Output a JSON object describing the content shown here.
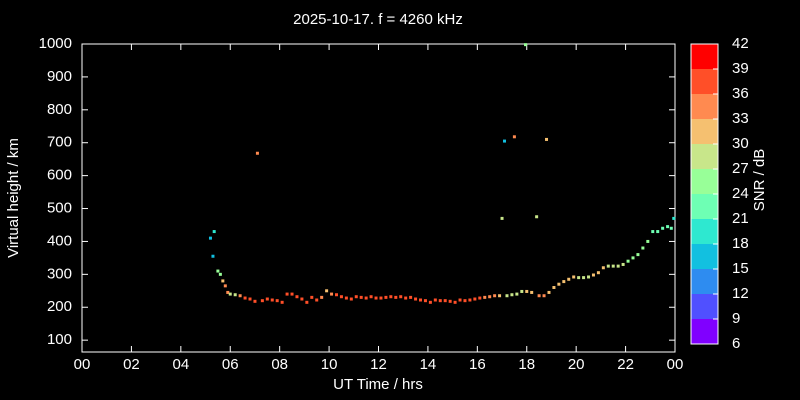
{
  "chart_data": {
    "type": "scatter",
    "title": "2025-10-17. f = 4260 kHz",
    "xlabel": "UT Time / hrs",
    "ylabel": "Virtual height / km",
    "xlim": [
      0,
      24
    ],
    "xticks": [
      {
        "value": 0,
        "label": "00"
      },
      {
        "value": 2,
        "label": "02"
      },
      {
        "value": 4,
        "label": "04"
      },
      {
        "value": 6,
        "label": "06"
      },
      {
        "value": 8,
        "label": "08"
      },
      10,
      12,
      14,
      16,
      18,
      20,
      22,
      {
        "value": 24,
        "label": "00"
      }
    ],
    "ylim": [
      64,
      1000
    ],
    "yticks": [
      100,
      200,
      300,
      400,
      500,
      600,
      700,
      800,
      900,
      1000
    ],
    "colorbar": {
      "label": "SNR / dB",
      "ticks": [
        6,
        9,
        12,
        15,
        18,
        21,
        24,
        27,
        30,
        33,
        36,
        39,
        42
      ],
      "colors": [
        "#8000ff",
        "#5050ff",
        "#2e8cf0",
        "#12c0e0",
        "#2ee8d0",
        "#6effb4",
        "#98ff98",
        "#c8e68a",
        "#f5c070",
        "#ff8a50",
        "#ff4f28",
        "#ff0000"
      ]
    },
    "x": [
      5.2,
      5.35,
      5.3,
      5.5,
      5.6,
      5.7,
      5.8,
      5.9,
      6.0,
      6.2,
      6.4,
      6.6,
      6.8,
      7.0,
      7.1,
      7.3,
      7.5,
      7.7,
      7.9,
      8.1,
      8.3,
      8.5,
      8.7,
      8.9,
      9.1,
      9.3,
      9.5,
      9.7,
      9.9,
      10.1,
      10.3,
      10.5,
      10.7,
      10.9,
      11.1,
      11.3,
      11.5,
      11.7,
      11.9,
      12.1,
      12.3,
      12.5,
      12.7,
      12.9,
      13.1,
      13.3,
      13.5,
      13.7,
      13.9,
      14.1,
      14.3,
      14.5,
      14.7,
      14.9,
      15.1,
      15.3,
      15.5,
      15.7,
      15.9,
      16.1,
      16.3,
      16.5,
      16.7,
      16.9,
      17.0,
      17.1,
      17.2,
      17.4,
      17.5,
      17.6,
      17.8,
      18.0,
      17.95,
      18.2,
      18.4,
      18.5,
      18.7,
      18.8,
      18.9,
      19.1,
      19.3,
      19.5,
      19.7,
      19.9,
      20.1,
      20.3,
      20.5,
      20.7,
      20.9,
      21.1,
      21.3,
      21.5,
      21.7,
      21.9,
      22.1,
      22.3,
      22.5,
      22.7,
      22.9,
      23.1,
      23.3,
      23.5,
      23.7,
      23.85,
      23.95
    ],
    "values": [
      410,
      430,
      355,
      310,
      300,
      280,
      265,
      245,
      240,
      238,
      235,
      228,
      225,
      218,
      668,
      220,
      225,
      222,
      220,
      215,
      240,
      240,
      232,
      225,
      215,
      230,
      222,
      230,
      250,
      240,
      238,
      232,
      228,
      225,
      232,
      230,
      228,
      232,
      228,
      228,
      230,
      232,
      230,
      232,
      228,
      230,
      225,
      222,
      220,
      215,
      222,
      220,
      220,
      218,
      215,
      222,
      220,
      222,
      225,
      228,
      230,
      232,
      235,
      235,
      470,
      705,
      235,
      238,
      718,
      240,
      248,
      248,
      998,
      245,
      475,
      235,
      235,
      710,
      245,
      260,
      270,
      278,
      285,
      292,
      290,
      290,
      292,
      298,
      305,
      320,
      325,
      325,
      325,
      330,
      340,
      350,
      360,
      380,
      400,
      430,
      430,
      440,
      445,
      440,
      470
    ],
    "snr": [
      17,
      20,
      17,
      26,
      26,
      32,
      35,
      35,
      29,
      29,
      35,
      38,
      38,
      38,
      35,
      38,
      38,
      38,
      38,
      38,
      38,
      38,
      38,
      38,
      38,
      38,
      38,
      35,
      32,
      35,
      38,
      38,
      38,
      38,
      38,
      38,
      38,
      38,
      38,
      38,
      38,
      38,
      38,
      38,
      38,
      38,
      38,
      38,
      38,
      38,
      38,
      38,
      38,
      38,
      38,
      38,
      38,
      38,
      38,
      38,
      35,
      35,
      35,
      32,
      29,
      17,
      29,
      29,
      35,
      29,
      29,
      32,
      26,
      32,
      29,
      35,
      35,
      32,
      32,
      32,
      32,
      32,
      32,
      32,
      29,
      29,
      29,
      32,
      32,
      32,
      29,
      29,
      29,
      29,
      26,
      26,
      26,
      26,
      26,
      23,
      23,
      23,
      23,
      23,
      20
    ]
  }
}
